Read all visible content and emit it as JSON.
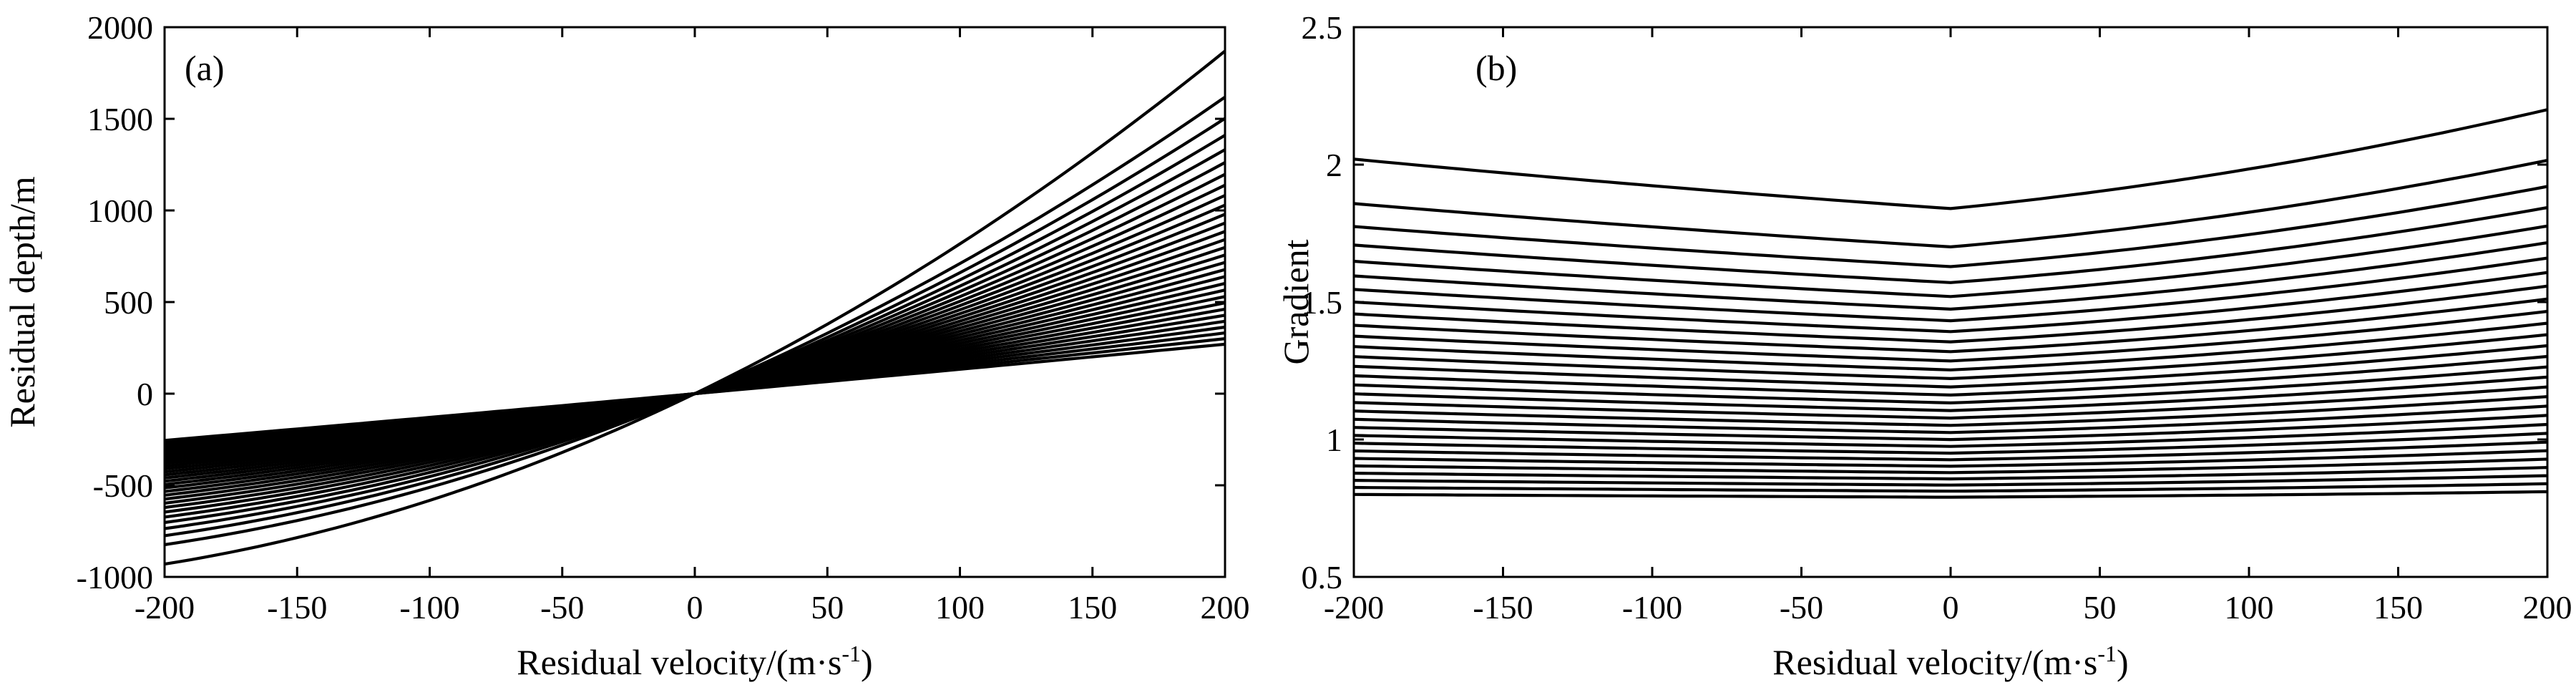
{
  "figure": {
    "panels": [
      {
        "id": "a",
        "panel_label": "(a)",
        "xlabel_main": "Residual velocity/(m·s",
        "xlabel_sup": "-1",
        "xlabel_tail": ")",
        "ylabel": "Residual depth/m"
      },
      {
        "id": "b",
        "panel_label": "(b)",
        "xlabel_main": "Residual velocity/(m·s",
        "xlabel_sup": "-1",
        "xlabel_tail": ")",
        "ylabel": "Gradient"
      }
    ]
  },
  "chart_data": [
    {
      "type": "line",
      "panel": "(a)",
      "xlim": [
        -200,
        200
      ],
      "ylim": [
        -1000,
        2000
      ],
      "xticks": [
        -200,
        -150,
        -100,
        -50,
        0,
        50,
        100,
        150,
        200
      ],
      "yticks": [
        -1000,
        -500,
        0,
        500,
        1000,
        1500,
        2000
      ],
      "grid": false,
      "legend": "none",
      "curve_family": {
        "count": 30,
        "x": [
          -200,
          -150,
          -100,
          -50,
          0,
          50,
          100,
          150,
          200
        ],
        "value_at_x_-200": {
          "first": -930,
          "last": -255
        },
        "value_at_x_0": 0,
        "value_at_x_200": {
          "first": 1870,
          "last": 270
        }
      }
    },
    {
      "type": "line",
      "panel": "(b)",
      "xlim": [
        -200,
        200
      ],
      "ylim": [
        0.5,
        2.5
      ],
      "xticks": [
        -200,
        -150,
        -100,
        -50,
        0,
        50,
        100,
        150,
        200
      ],
      "yticks": [
        0.5,
        1,
        1.5,
        2,
        2.5
      ],
      "ytick_labels": [
        "0.5",
        "1",
        "1.5",
        "2",
        "2.5"
      ],
      "grid": false,
      "legend": "none",
      "curve_family": {
        "count": 30,
        "x": [
          -200,
          -150,
          -100,
          -50,
          0,
          50,
          100,
          150,
          200
        ],
        "value_at_x_-200": {
          "first": 2.02,
          "last": 0.8
        },
        "value_at_x_0": {
          "first": 1.84,
          "last": 0.79
        },
        "value_at_x_200": {
          "first": 2.2,
          "last": 0.81
        }
      }
    }
  ]
}
